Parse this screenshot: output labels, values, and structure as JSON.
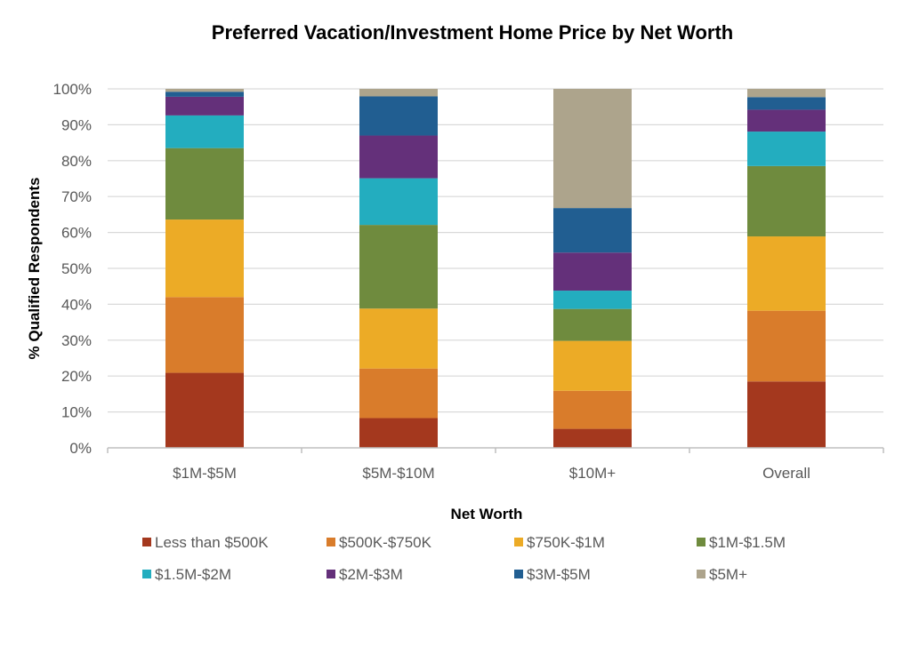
{
  "chart_data": {
    "type": "bar",
    "stacked": true,
    "title": "Preferred Vacation/Investment Home Price by Net Worth",
    "xlabel": "Net Worth",
    "ylabel": "% Qualified Respondents",
    "categories": [
      "$1M-$5M",
      "$5M-$10M",
      "$10M+",
      "Overall"
    ],
    "ylim": [
      0,
      100
    ],
    "yticks": [
      "0%",
      "10%",
      "20%",
      "30%",
      "40%",
      "50%",
      "60%",
      "70%",
      "80%",
      "90%",
      "100%"
    ],
    "grid": true,
    "legend_position": "bottom",
    "series": [
      {
        "name": "Less than $500K",
        "color": "#a4381e",
        "values": [
          20.9,
          8.3,
          5.3,
          18.5
        ]
      },
      {
        "name": "$500K-$750K",
        "color": "#d97c2b",
        "values": [
          21.1,
          13.8,
          10.6,
          19.7
        ]
      },
      {
        "name": "$750K-$1M",
        "color": "#ecab26",
        "values": [
          21.6,
          16.7,
          13.9,
          20.7
        ]
      },
      {
        "name": "$1M-$1.5M",
        "color": "#6f8b3e",
        "values": [
          19.9,
          23.3,
          8.9,
          19.6
        ]
      },
      {
        "name": "$1.5M-$2M",
        "color": "#23adbf",
        "values": [
          9.1,
          13.0,
          5.1,
          9.6
        ]
      },
      {
        "name": "$2M-$3M",
        "color": "#64307a",
        "values": [
          5.2,
          11.9,
          10.6,
          6.1
        ]
      },
      {
        "name": "$3M-$5M",
        "color": "#215e91",
        "values": [
          1.4,
          10.9,
          12.4,
          3.5
        ]
      },
      {
        "name": "$5M+",
        "color": "#ada48c",
        "values": [
          0.8,
          2.1,
          33.2,
          2.3
        ]
      }
    ]
  }
}
